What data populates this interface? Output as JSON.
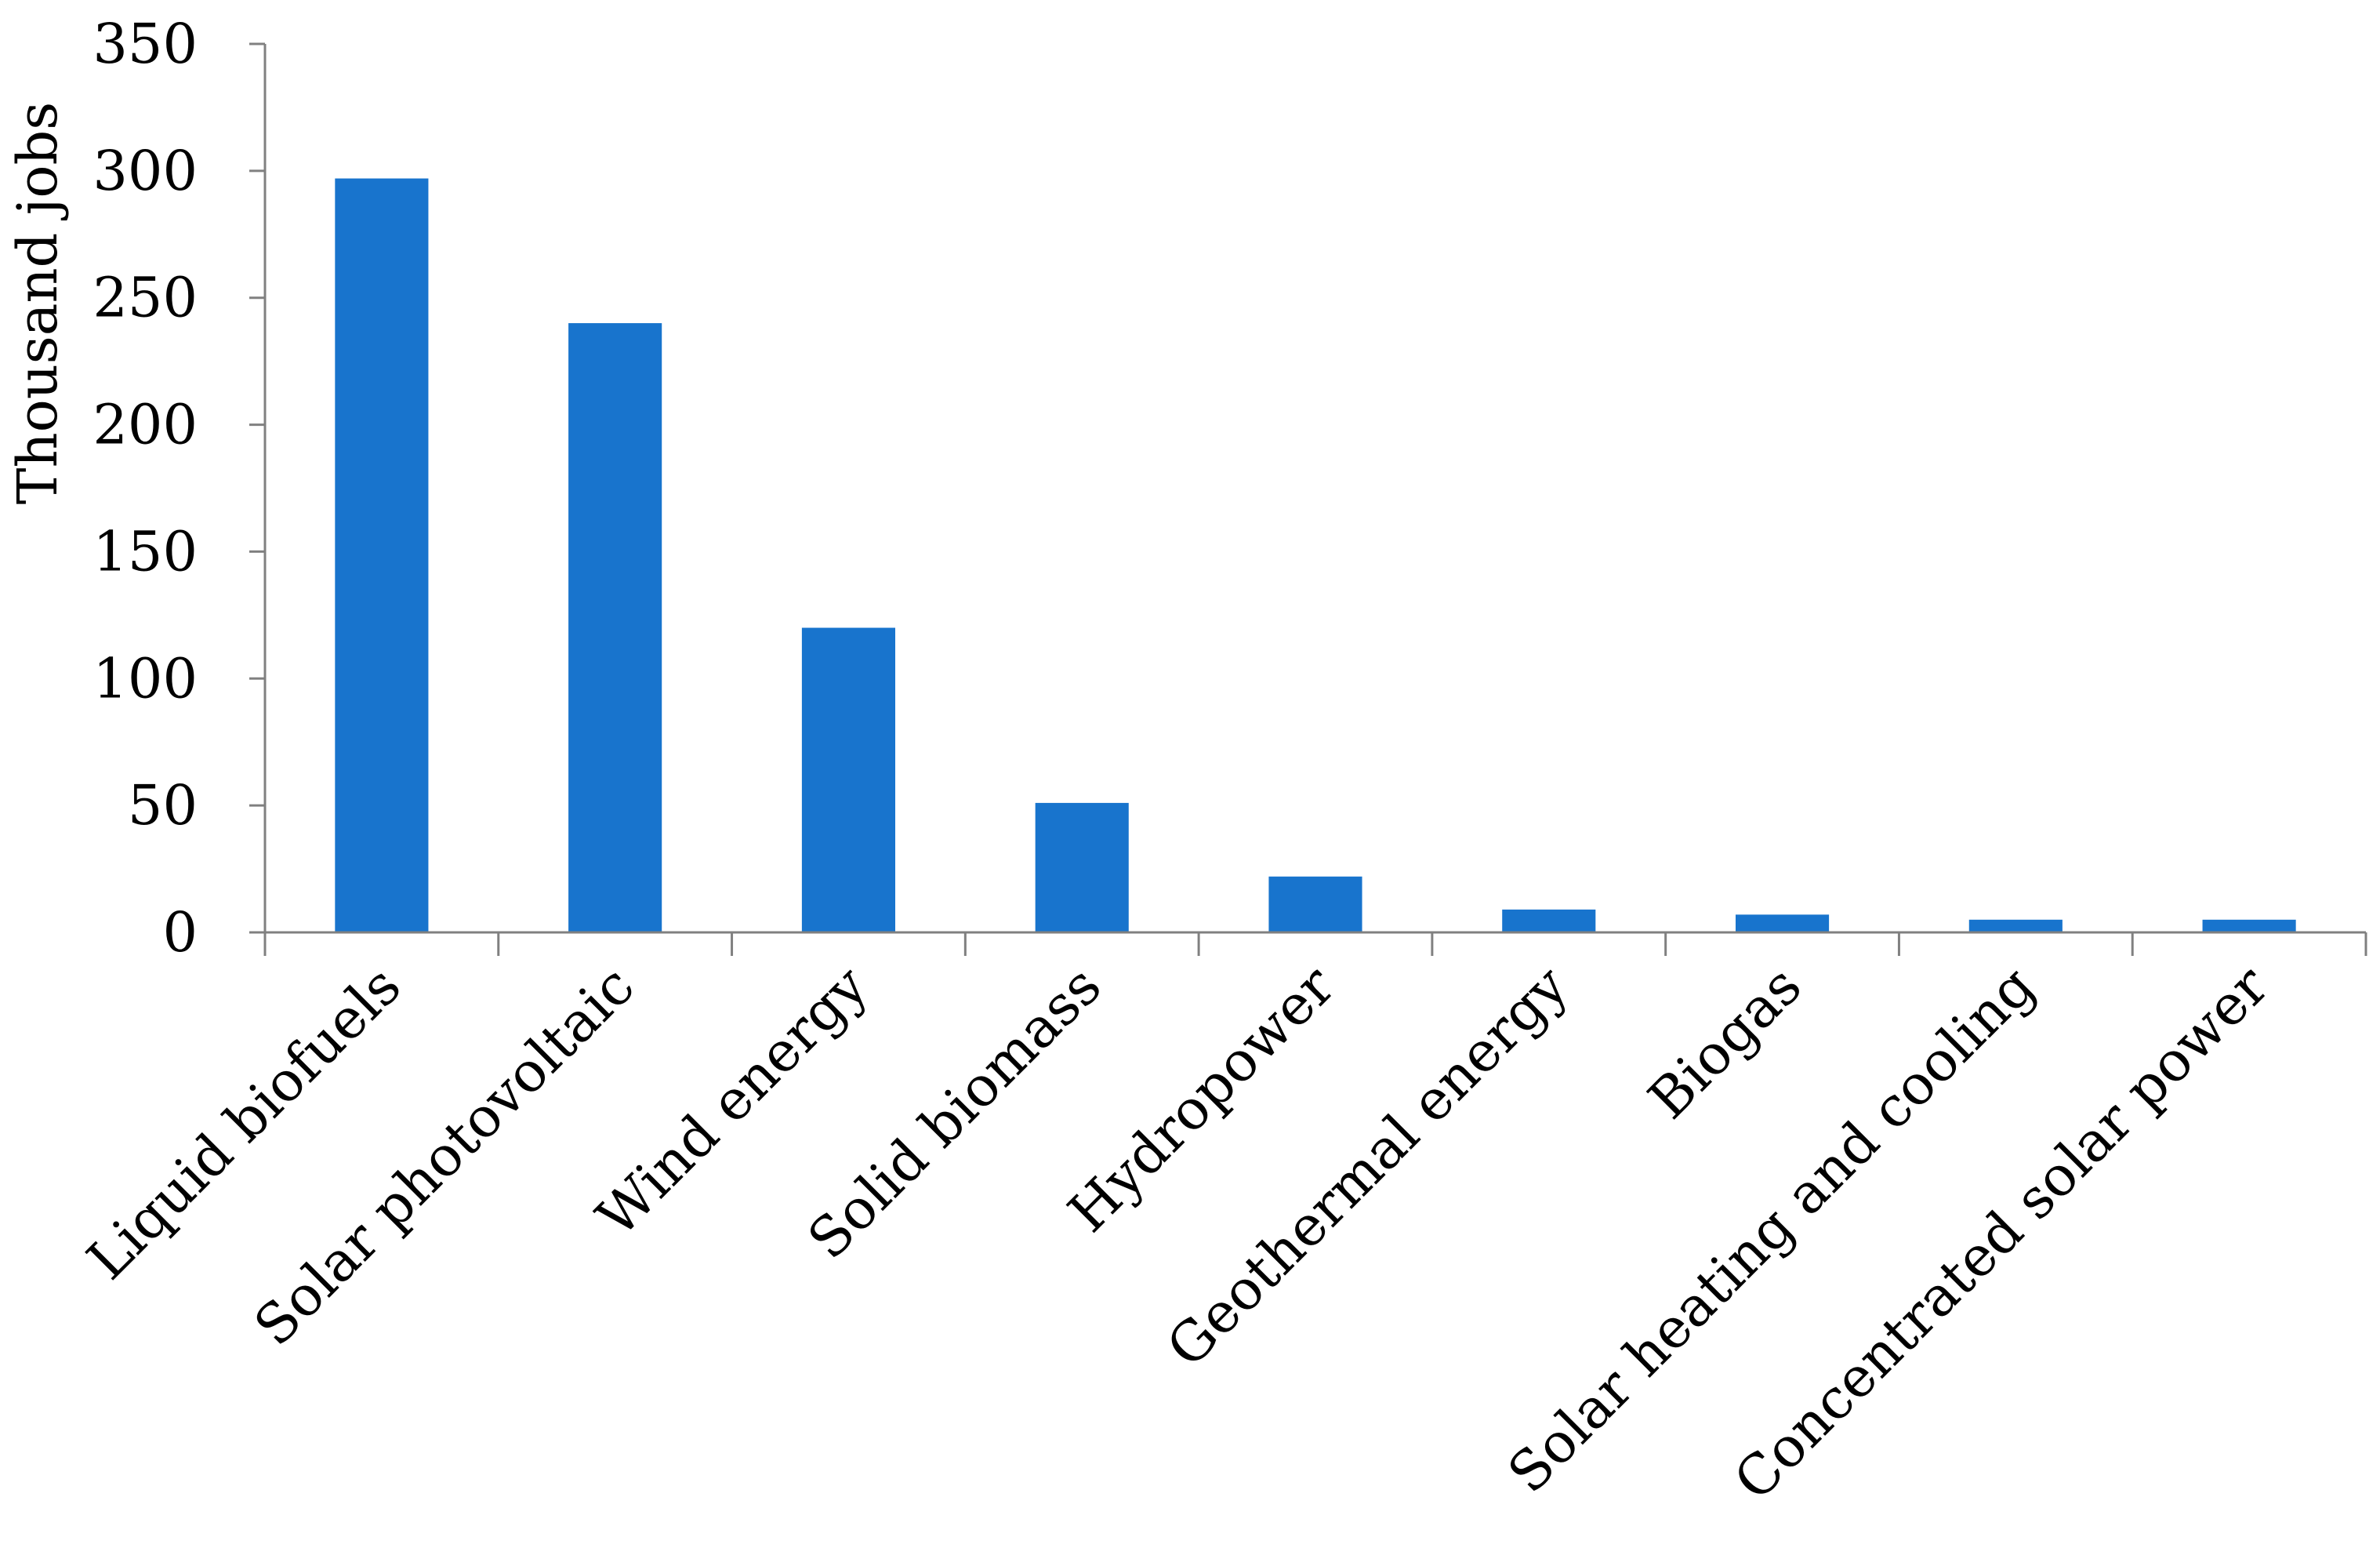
{
  "chart_data": {
    "type": "bar",
    "categories": [
      "Liquid biofuels",
      "Solar photovoltaic",
      "Wind energy",
      "Solid biomass",
      "Hydropower",
      "Geothermal energy",
      "Biogas",
      "Solar heating and cooling",
      "Concentrated solar power"
    ],
    "values": [
      297,
      240,
      120,
      51,
      22,
      9,
      7,
      5,
      5
    ],
    "title": "",
    "xlabel": "",
    "ylabel": "Thousand jobs",
    "ylim": [
      0,
      350
    ],
    "yticks": [
      "0",
      "50",
      "100",
      "150",
      "200",
      "250",
      "300",
      "350"
    ],
    "grid": false,
    "legend": "none",
    "bar_color": "#1874CD"
  }
}
